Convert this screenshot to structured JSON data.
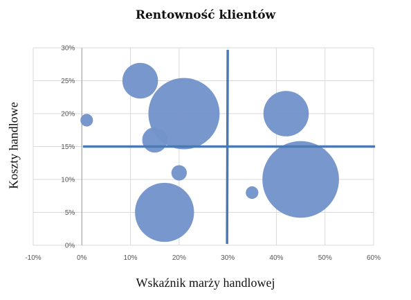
{
  "chart_data": {
    "type": "scatter",
    "subtype": "bubble",
    "title": "Rentowność klientów",
    "xlabel": "Wskaźnik marży handlowej",
    "ylabel": "Koszty handlowe",
    "xlim": [
      -10,
      60
    ],
    "ylim": [
      0,
      30
    ],
    "x_ticks": [
      "-10%",
      "0%",
      "10%",
      "20%",
      "30%",
      "40%",
      "50%",
      "60%"
    ],
    "y_ticks": [
      "0%",
      "5%",
      "10%",
      "15%",
      "20%",
      "25%",
      "30%"
    ],
    "grid": true,
    "bubble_color": "#7293cb",
    "divider_color": "#4a79b4",
    "dividers": {
      "x": 30,
      "y": 15
    },
    "points": [
      {
        "x": 1,
        "y": 19,
        "size": 1
      },
      {
        "x": 12,
        "y": 25,
        "size": 8
      },
      {
        "x": 21,
        "y": 20,
        "size": 32
      },
      {
        "x": 15,
        "y": 16,
        "size": 4
      },
      {
        "x": 20,
        "y": 11,
        "size": 1.5
      },
      {
        "x": 17,
        "y": 5,
        "size": 22
      },
      {
        "x": 35,
        "y": 8,
        "size": 1
      },
      {
        "x": 42,
        "y": 20,
        "size": 13
      },
      {
        "x": 45,
        "y": 10,
        "size": 37
      }
    ]
  }
}
